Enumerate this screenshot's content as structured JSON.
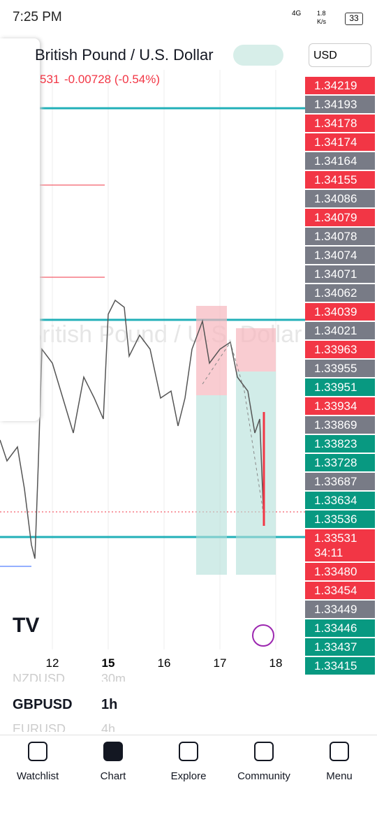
{
  "status": {
    "time": "7:25 PM",
    "network": "4G",
    "speed": "1.8",
    "speed_unit": "K/s",
    "battery": "33"
  },
  "header": {
    "title": "British Pound / U.S. Dollar",
    "price": "531",
    "change": "-0.00728 (-0.54%)",
    "currency": "USD"
  },
  "watermark": "British Pound / U.S. Dollar",
  "price_labels": [
    {
      "text": "1.34219",
      "color": "#f23645"
    },
    {
      "text": "1.34193",
      "color": "#787b86"
    },
    {
      "text": "1.34178",
      "color": "#f23645"
    },
    {
      "text": "1.34174",
      "color": "#f23645"
    },
    {
      "text": "1.34164",
      "color": "#787b86"
    },
    {
      "text": "1.34155",
      "color": "#f23645"
    },
    {
      "text": "1.34086",
      "color": "#787b86"
    },
    {
      "text": "1.34079",
      "color": "#f23645"
    },
    {
      "text": "1.34078",
      "color": "#787b86"
    },
    {
      "text": "1.34074",
      "color": "#787b86"
    },
    {
      "text": "1.34071",
      "color": "#787b86"
    },
    {
      "text": "1.34062",
      "color": "#787b86"
    },
    {
      "text": "1.34039",
      "color": "#f23645"
    },
    {
      "text": "1.34021",
      "color": "#787b86"
    },
    {
      "text": "1.33963",
      "color": "#f23645"
    },
    {
      "text": "1.33955",
      "color": "#787b86"
    },
    {
      "text": "1.33951",
      "color": "#089981"
    },
    {
      "text": "1.33934",
      "color": "#f23645"
    },
    {
      "text": "1.33869",
      "color": "#787b86"
    },
    {
      "text": "1.33823",
      "color": "#089981"
    },
    {
      "text": "1.33728",
      "color": "#089981"
    },
    {
      "text": "1.33687",
      "color": "#787b86"
    },
    {
      "text": "1.33634",
      "color": "#089981"
    },
    {
      "text": "1.33536",
      "color": "#089981"
    },
    {
      "text": "1.33531",
      "color": "#f23645",
      "sub": "34:11"
    },
    {
      "text": "1.33480",
      "color": "#f23645"
    },
    {
      "text": "1.33454",
      "color": "#f23645"
    },
    {
      "text": "1.33449",
      "color": "#787b86"
    },
    {
      "text": "1.33446",
      "color": "#089981"
    },
    {
      "text": "1.33437",
      "color": "#089981"
    },
    {
      "text": "1.33415",
      "color": "#089981"
    }
  ],
  "x_labels": [
    "12",
    "15",
    "16",
    "17",
    "18"
  ],
  "symbols": [
    {
      "symbol": "NZDUSD",
      "interval": "30m"
    },
    {
      "symbol": "GBPUSD",
      "interval": "1h"
    },
    {
      "symbol": "EURUSD",
      "interval": "4h"
    }
  ],
  "nav": [
    "Watchlist",
    "Chart",
    "Explore",
    "Community",
    "Menu"
  ]
}
